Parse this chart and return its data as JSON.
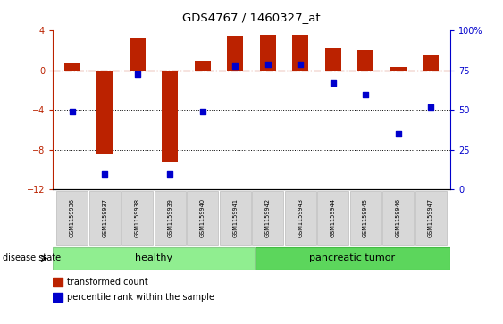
{
  "title": "GDS4767 / 1460327_at",
  "samples": [
    "GSM1159936",
    "GSM1159937",
    "GSM1159938",
    "GSM1159939",
    "GSM1159940",
    "GSM1159941",
    "GSM1159942",
    "GSM1159943",
    "GSM1159944",
    "GSM1159945",
    "GSM1159946",
    "GSM1159947"
  ],
  "transformed_counts": [
    0.7,
    -8.5,
    3.2,
    -9.2,
    1.0,
    3.5,
    3.6,
    3.6,
    2.2,
    2.1,
    0.4,
    1.5
  ],
  "percentile_ranks": [
    49,
    10,
    73,
    10,
    49,
    78,
    79,
    79,
    67,
    60,
    35,
    52
  ],
  "groups": [
    "healthy",
    "healthy",
    "healthy",
    "healthy",
    "healthy",
    "healthy",
    "pancreatic tumor",
    "pancreatic tumor",
    "pancreatic tumor",
    "pancreatic tumor",
    "pancreatic tumor",
    "pancreatic tumor"
  ],
  "healthy_color": "#90ee90",
  "tumor_color": "#5cd65c",
  "bar_color": "#bb2200",
  "dot_color": "#0000cc",
  "ylim_left": [
    -12,
    4
  ],
  "ylim_right": [
    0,
    100
  ],
  "yticks_left": [
    4,
    0,
    -4,
    -8,
    -12
  ],
  "yticks_right": [
    100,
    75,
    50,
    25,
    0
  ],
  "hline_y": 0,
  "dotted_lines": [
    -4,
    -8
  ],
  "bar_width": 0.5,
  "background_color": "#ffffff",
  "healthy_label": "healthy",
  "tumor_label": "pancreatic tumor",
  "disease_state_label": "disease state",
  "legend_bar_label": "transformed count",
  "legend_dot_label": "percentile rank within the sample"
}
